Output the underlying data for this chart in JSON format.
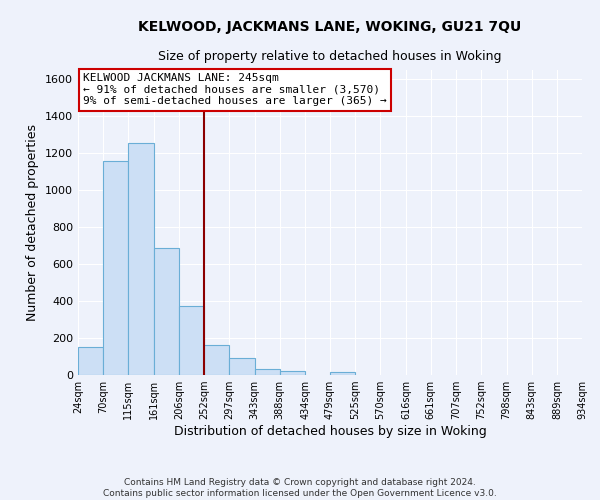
{
  "title": "KELWOOD, JACKMANS LANE, WOKING, GU21 7QU",
  "subtitle": "Size of property relative to detached houses in Woking",
  "xlabel": "Distribution of detached houses by size in Woking",
  "ylabel": "Number of detached properties",
  "bin_edges": [
    24,
    70,
    115,
    161,
    206,
    252,
    297,
    343,
    388,
    434,
    479,
    525,
    570,
    616,
    661,
    707,
    752,
    798,
    843,
    889,
    934
  ],
  "bin_counts": [
    150,
    1160,
    1255,
    685,
    375,
    160,
    90,
    35,
    20,
    0,
    15,
    0,
    0,
    0,
    0,
    0,
    0,
    0,
    0,
    0
  ],
  "bar_facecolor": "#ccdff5",
  "bar_edgecolor": "#6aaed6",
  "vline_x": 252,
  "vline_color": "#8b0000",
  "ylim": [
    0,
    1650
  ],
  "yticks": [
    0,
    200,
    400,
    600,
    800,
    1000,
    1200,
    1400,
    1600
  ],
  "annotation_title": "KELWOOD JACKMANS LANE: 245sqm",
  "annotation_line1": "← 91% of detached houses are smaller (3,570)",
  "annotation_line2": "9% of semi-detached houses are larger (365) →",
  "annotation_box_facecolor": "#ffffff",
  "annotation_box_edgecolor": "#cc0000",
  "footer_line1": "Contains HM Land Registry data © Crown copyright and database right 2024.",
  "footer_line2": "Contains public sector information licensed under the Open Government Licence v3.0.",
  "background_color": "#eef2fb",
  "plot_bg_color": "#eef2fb",
  "grid_color": "#ffffff"
}
